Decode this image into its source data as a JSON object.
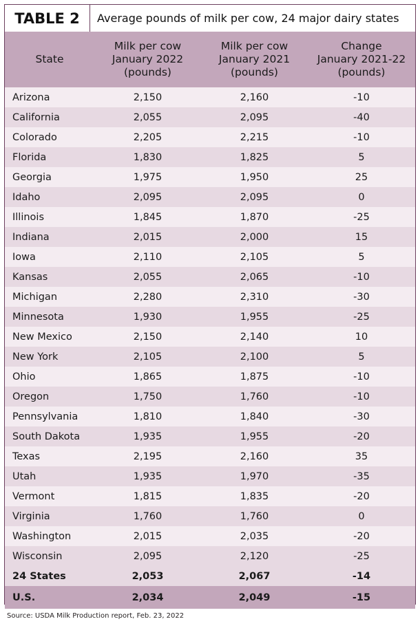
{
  "title": {
    "label": "TABLE 2",
    "subtitle": "Average pounds of milk per cow, 24 major dairy states"
  },
  "headers": [
    [
      "State"
    ],
    [
      "Milk per cow",
      "January 2022",
      "(pounds)"
    ],
    [
      "Milk per cow",
      "January 2021",
      "(pounds)"
    ],
    [
      "Change",
      "January 2021-22",
      "(pounds)"
    ]
  ],
  "rows": [
    [
      "Arizona",
      "2,150",
      "2,160",
      "-10"
    ],
    [
      "California",
      "2,055",
      "2,095",
      "-40"
    ],
    [
      "Colorado",
      "2,205",
      "2,215",
      "-10"
    ],
    [
      "Florida",
      "1,830",
      "1,825",
      "5"
    ],
    [
      "Georgia",
      "1,975",
      "1,950",
      "25"
    ],
    [
      "Idaho",
      "2,095",
      "2,095",
      "0"
    ],
    [
      "Illinois",
      "1,845",
      "1,870",
      "-25"
    ],
    [
      "Indiana",
      "2,015",
      "2,000",
      "15"
    ],
    [
      "Iowa",
      "2,110",
      "2,105",
      "5"
    ],
    [
      "Kansas",
      "2,055",
      "2,065",
      "-10"
    ],
    [
      "Michigan",
      "2,280",
      "2,310",
      "-30"
    ],
    [
      "Minnesota",
      "1,930",
      "1,955",
      "-25"
    ],
    [
      "New Mexico",
      "2,150",
      "2,140",
      "10"
    ],
    [
      "New York",
      "2,105",
      "2,100",
      "5"
    ],
    [
      "Ohio",
      "1,865",
      "1,875",
      "-10"
    ],
    [
      "Oregon",
      "1,750",
      "1,760",
      "-10"
    ],
    [
      "Pennsylvania",
      "1,810",
      "1,840",
      "-30"
    ],
    [
      "South Dakota",
      "1,935",
      "1,955",
      "-20"
    ],
    [
      "Texas",
      "2,195",
      "2,160",
      "35"
    ],
    [
      "Utah",
      "1,935",
      "1,970",
      "-35"
    ],
    [
      "Vermont",
      "1,815",
      "1,835",
      "-20"
    ],
    [
      "Virginia",
      "1,760",
      "1,760",
      "0"
    ],
    [
      "Washington",
      "2,015",
      "2,035",
      "-20"
    ],
    [
      "Wisconsin",
      "2,095",
      "2,120",
      "-25"
    ]
  ],
  "totals": [
    [
      "24 States",
      "2,053",
      "2,067",
      "-14"
    ],
    [
      "U.S.",
      "2,034",
      "2,049",
      "-15"
    ]
  ],
  "source": "Source: USDA Milk Production report, Feb. 23, 2022",
  "colors": {
    "header_bg": "#c3a7bb",
    "row_light": "#f4ecf1",
    "row_dark": "#e7d9e2",
    "border": "#6b3f5e"
  }
}
